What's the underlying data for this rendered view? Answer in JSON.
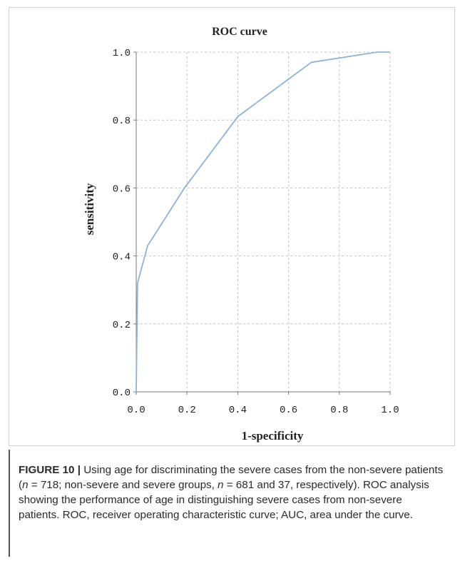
{
  "chart_data": {
    "type": "line",
    "title": "ROC curve",
    "xlabel": "1-specificity",
    "ylabel": "sensitivity",
    "xlim": [
      0.0,
      1.0
    ],
    "ylim": [
      0.0,
      1.0
    ],
    "xticks": [
      "0.0",
      "0.2",
      "0.4",
      "0.6",
      "0.8",
      "1.0"
    ],
    "yticks": [
      "0.0",
      "0.2",
      "0.4",
      "0.6",
      "0.8",
      "1.0"
    ],
    "grid": true,
    "series": [
      {
        "x": [
          0.0,
          0.005,
          0.045,
          0.19,
          0.4,
          0.69,
          0.95,
          1.0
        ],
        "y": [
          0.0,
          0.32,
          0.43,
          0.6,
          0.81,
          0.97,
          1.0,
          1.0
        ]
      }
    ],
    "colors": {
      "line": "#8fb2d8",
      "grid": "#c4c4c4",
      "axis": "#7a7a7a",
      "text": "#222222"
    }
  },
  "caption": {
    "label": "FIGURE 10 |",
    "part1": " Using age for discriminating the severe cases from the non-severe patients (",
    "n1": "n",
    "part2": " = 718; non-severe and severe groups, ",
    "n2": "n",
    "part3": " = 681 and 37, respectively). ROC analysis showing the performance of age in distinguishing severe cases from non-severe patients. ROC, receiver operating characteristic curve; AUC, area under the curve."
  }
}
